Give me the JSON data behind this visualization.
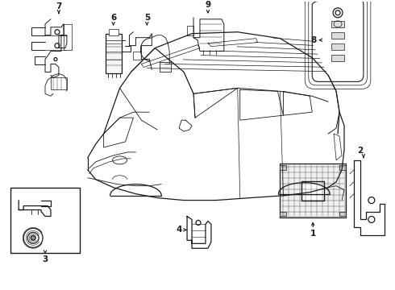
{
  "bg_color": "#ffffff",
  "line_color": "#1a1a1a",
  "fig_width": 4.9,
  "fig_height": 3.6,
  "dpi": 100,
  "components": {
    "car": {
      "roof_x": [
        148,
        162,
        192,
        238,
        295,
        348,
        388,
        408,
        418
      ],
      "roof_y": [
        108,
        88,
        58,
        40,
        38,
        46,
        70,
        92,
        112
      ]
    }
  }
}
